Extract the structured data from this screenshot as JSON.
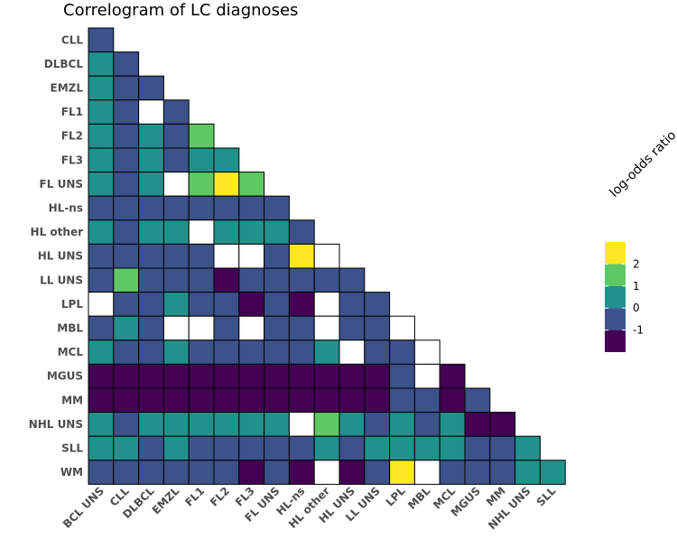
{
  "chart_data": {
    "type": "heatmap",
    "title": "Correlogram of LC diagnoses",
    "row_labels": [
      "CLL",
      "DLBCL",
      "EMZL",
      "FL1",
      "FL2",
      "FL3",
      "FL UNS",
      "HL-ns",
      "HL other",
      "HL UNS",
      "LL UNS",
      "LPL",
      "MBL",
      "MCL",
      "MGUS",
      "MM",
      "NHL UNS",
      "SLL",
      "WM"
    ],
    "col_labels": [
      "BCL UNS",
      "CLL",
      "DLBCL",
      "EMZL",
      "FL1",
      "FL2",
      "FL3",
      "FL UNS",
      "HL-ns",
      "HL other",
      "HL UNS",
      "LL UNS",
      "LPL",
      "MBL",
      "MCL",
      "MGUS",
      "MM",
      "NHL UNS",
      "SLL"
    ],
    "values": [
      [
        -0.4
      ],
      [
        0.5,
        -0.4
      ],
      [
        0.5,
        -0.4,
        -0.4
      ],
      [
        0.5,
        -0.4,
        null,
        -0.4
      ],
      [
        0.5,
        -0.4,
        0.5,
        -0.4,
        1.5
      ],
      [
        0.5,
        -0.4,
        0.5,
        -0.4,
        0.5,
        0.5
      ],
      [
        0.5,
        -0.4,
        0.5,
        null,
        1.5,
        2.5,
        1.5
      ],
      [
        -0.4,
        -0.4,
        -0.4,
        -0.4,
        -0.4,
        -0.4,
        -0.4,
        -0.4
      ],
      [
        0.5,
        -0.4,
        0.5,
        0.5,
        null,
        0.5,
        0.5,
        0.5,
        -0.4
      ],
      [
        -0.4,
        -0.4,
        -0.4,
        -0.4,
        -0.4,
        null,
        null,
        -0.4,
        2.5,
        null
      ],
      [
        -0.4,
        1.5,
        -0.4,
        -0.4,
        -0.4,
        -1.4,
        -0.4,
        -0.4,
        -0.4,
        -0.4,
        -0.4
      ],
      [
        null,
        -0.4,
        -0.4,
        0.5,
        -0.4,
        -0.4,
        -1.4,
        -0.4,
        -1.4,
        null,
        -0.4,
        -0.4
      ],
      [
        -0.4,
        0.5,
        -0.4,
        null,
        null,
        -0.4,
        null,
        -0.4,
        -0.4,
        null,
        -0.4,
        -0.4,
        null
      ],
      [
        0.5,
        -0.4,
        -0.4,
        0.5,
        -0.4,
        -0.4,
        -0.4,
        -0.4,
        -0.4,
        0.5,
        null,
        -0.4,
        -0.4,
        null
      ],
      [
        -1.4,
        -1.4,
        -1.4,
        -1.4,
        -1.4,
        -1.4,
        -1.4,
        -1.4,
        -1.4,
        -1.4,
        -1.4,
        -1.4,
        -0.4,
        null,
        -1.4
      ],
      [
        -1.4,
        -1.4,
        -1.4,
        -1.4,
        -1.4,
        -1.4,
        -1.4,
        -1.4,
        -1.4,
        -1.4,
        -1.4,
        -1.4,
        -0.4,
        -0.4,
        -1.4,
        -0.4
      ],
      [
        0.5,
        -0.4,
        0.5,
        0.5,
        0.5,
        0.5,
        0.5,
        0.5,
        null,
        1.5,
        0.5,
        -0.4,
        0.5,
        -0.4,
        0.5,
        -1.4,
        -1.4
      ],
      [
        0.5,
        0.5,
        -0.4,
        0.5,
        -0.4,
        -0.4,
        -0.4,
        -0.4,
        -0.4,
        0.5,
        -0.4,
        0.5,
        0.5,
        0.5,
        0.5,
        -0.4,
        -0.4,
        0.5
      ],
      [
        -0.4,
        -0.4,
        -0.4,
        -0.4,
        -0.4,
        -0.4,
        -1.4,
        -0.4,
        -1.4,
        null,
        -1.4,
        -0.4,
        2.5,
        null,
        -0.4,
        -0.4,
        -0.4,
        0.5,
        0.5
      ]
    ],
    "value_note": "log-odds ratio per pair; null = missing (white)",
    "legend": {
      "title": "log-odds ratio",
      "ticks": [
        "2",
        "1",
        "0",
        "-1"
      ],
      "bins": [
        {
          "range": [
            2,
            3
          ],
          "color": "#fde725"
        },
        {
          "range": [
            1,
            2
          ],
          "color": "#5ec962"
        },
        {
          "range": [
            0,
            1
          ],
          "color": "#21918c"
        },
        {
          "range": [
            -1,
            0
          ],
          "color": "#3b528b"
        },
        {
          "range": [
            -2,
            -1
          ],
          "color": "#440154"
        }
      ],
      "placement": "right"
    },
    "missing_color": "#ffffff"
  }
}
